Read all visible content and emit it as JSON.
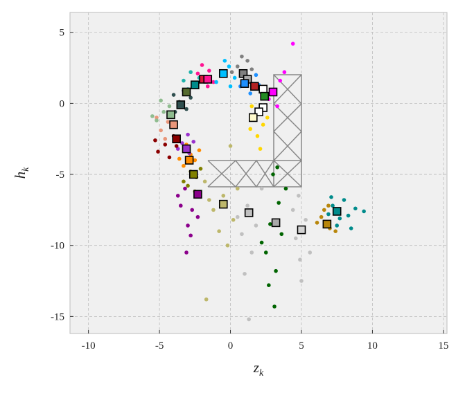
{
  "chart_data": {
    "type": "scatter",
    "xlabel": "z",
    "xlabel_sub": "k",
    "ylabel": "h",
    "ylabel_sub": "k",
    "xlim": [
      -11.3,
      15.25
    ],
    "ylim": [
      -16.2,
      6.4
    ],
    "xticks": [
      -10,
      -5,
      0,
      5,
      10,
      15
    ],
    "yticks": [
      -15,
      -10,
      -5,
      0,
      5
    ],
    "grid": true,
    "series": [
      {
        "color": "#008b8b",
        "x": [
          7.2,
          8.3,
          8.0,
          7.5,
          8.8,
          6.9,
          7.7,
          8.5,
          7.1,
          9.4
        ],
        "values": [
          -7.2,
          -7.9,
          -6.8,
          -8.6,
          -7.4,
          -7.8,
          -8.1,
          -8.8,
          -6.6,
          -7.6
        ]
      },
      {
        "color": "#b8860b",
        "x": [
          6.4,
          7.0,
          6.6,
          7.4,
          6.1,
          6.9
        ],
        "values": [
          -8.0,
          -8.8,
          -7.5,
          -9.0,
          -8.4,
          -7.2
        ]
      },
      {
        "color": "#c0c0c0",
        "x": [
          4.6,
          5.3,
          4.9,
          5.6,
          4.4,
          1.2,
          1.8,
          0.8,
          1.5,
          2.2,
          0.5,
          1.0,
          5.0,
          4.8,
          1.3
        ],
        "values": [
          -9.5,
          -8.2,
          -11.0,
          -10.5,
          -7.5,
          -7.2,
          -8.6,
          -9.2,
          -10.5,
          -6.0,
          -8.0,
          -12.0,
          -12.5,
          -6.5,
          -15.2
        ]
      },
      {
        "color": "#006400",
        "x": [
          3.0,
          3.4,
          2.8,
          3.6,
          2.5,
          3.2,
          3.9,
          2.7,
          3.1,
          3.3,
          2.2
        ],
        "values": [
          -5.0,
          -7.0,
          -8.5,
          -9.2,
          -10.5,
          -11.8,
          -6.0,
          -12.8,
          -14.3,
          -4.5,
          -9.8
        ]
      },
      {
        "color": "#bdb76b",
        "x": [
          -0.5,
          -1.2,
          0.2,
          -0.8,
          0.5,
          -1.5,
          -0.2,
          0.0,
          -1.8,
          -1.7
        ],
        "values": [
          -6.5,
          -7.5,
          -8.2,
          -9.0,
          -6.0,
          -6.8,
          -10.0,
          -3.0,
          -5.5,
          -13.8
        ]
      },
      {
        "color": "#8b008b",
        "x": [
          -3.2,
          -2.7,
          -3.5,
          -2.3,
          -3.0,
          -3.7,
          -2.8,
          -3.1
        ],
        "values": [
          -6.0,
          -7.5,
          -7.2,
          -8.0,
          -8.6,
          -6.5,
          -9.3,
          -10.5
        ]
      },
      {
        "color": "#808000",
        "x": [
          -2.4,
          -3.0,
          -2.1,
          -2.8,
          -3.3,
          -2.5
        ],
        "values": [
          -5.2,
          -5.8,
          -4.6,
          -4.8,
          -5.5,
          -6.2
        ]
      },
      {
        "color": "#ff8c00",
        "x": [
          -2.8,
          -3.3,
          -2.5,
          -3.1,
          -2.2,
          -3.6
        ],
        "values": [
          -3.6,
          -4.4,
          -4.0,
          -2.9,
          -3.3,
          -3.9
        ]
      },
      {
        "color": "#9932cc",
        "x": [
          -3.4,
          -2.9,
          -3.7,
          -3.0,
          -2.6
        ],
        "values": [
          -2.8,
          -3.5,
          -3.2,
          -2.2,
          -2.7
        ]
      },
      {
        "color": "#8b0000",
        "x": [
          -4.6,
          -4.0,
          -5.1,
          -3.8,
          -4.3,
          -5.3
        ],
        "values": [
          -2.9,
          -2.3,
          -3.4,
          -3.0,
          -3.8,
          -2.6
        ]
      },
      {
        "color": "#e9967a",
        "x": [
          -4.4,
          -4.9,
          -3.9,
          -4.6,
          -5.2
        ],
        "values": [
          -1.3,
          -1.9,
          -1.6,
          -2.5,
          -1.0
        ]
      },
      {
        "color": "#8fbc8f",
        "x": [
          -4.7,
          -5.2,
          -4.3,
          -5.5,
          -4.9
        ],
        "values": [
          -0.6,
          -1.2,
          -0.2,
          -0.9,
          0.2
        ]
      },
      {
        "color": "#2f4f4f",
        "x": [
          -3.6,
          -3.1,
          -4.0,
          -3.3,
          -2.8,
          -3.9
        ],
        "values": [
          0.1,
          -0.4,
          0.6,
          0.9,
          0.4,
          -0.6
        ]
      },
      {
        "color": "#20b2aa",
        "x": [
          -2.5,
          -3.0,
          -2.2,
          -2.8,
          -3.3
        ],
        "values": [
          1.4,
          1.0,
          1.8,
          2.2,
          1.6
        ]
      },
      {
        "color": "#ff1493",
        "x": [
          -1.9,
          -1.5,
          -2.3,
          -1.2,
          -2.0,
          -1.6
        ],
        "values": [
          1.8,
          2.3,
          2.1,
          1.5,
          2.7,
          1.2
        ]
      },
      {
        "color": "#00bfff",
        "x": [
          -0.6,
          -0.1,
          -1.0,
          0.3,
          -0.4,
          0.0
        ],
        "values": [
          2.0,
          2.6,
          1.5,
          1.8,
          3.0,
          1.2
        ]
      },
      {
        "color": "#808080",
        "x": [
          0.5,
          1.2,
          0.1,
          0.8,
          1.5
        ],
        "values": [
          2.6,
          3.0,
          2.2,
          3.3,
          2.4
        ]
      },
      {
        "color": "#1e90ff",
        "x": [
          1.1,
          1.8,
          0.7,
          1.4,
          2.0
        ],
        "values": [
          1.5,
          2.0,
          1.2,
          0.7,
          1.3
        ]
      },
      {
        "color": "#ffd700",
        "x": [
          1.8,
          2.3,
          1.5,
          2.6,
          1.9,
          2.1,
          1.4
        ],
        "values": [
          -0.8,
          -1.5,
          -0.2,
          -1.0,
          -2.3,
          -3.2,
          -1.8
        ]
      },
      {
        "color": "#ff00ff",
        "x": [
          3.0,
          3.5,
          2.7,
          3.8,
          3.3,
          4.4
        ],
        "values": [
          0.9,
          1.6,
          0.3,
          2.2,
          -0.2,
          4.2
        ]
      }
    ],
    "centroids": {
      "marker": "square",
      "x": [
        7.5,
        6.8,
        5.0,
        3.2,
        1.3,
        -0.5,
        -2.3,
        -2.6,
        -2.9,
        -3.1,
        -3.8,
        -4.0,
        -4.2,
        -3.5,
        -3.1,
        -2.5,
        -1.9,
        -1.6,
        -0.5,
        0.9,
        1.2,
        1.0,
        1.7,
        2.3,
        2.4,
        3.0,
        2.3,
        2.0,
        1.6
      ],
      "values": [
        -7.6,
        -8.5,
        -8.9,
        -8.4,
        -7.7,
        -7.1,
        -6.4,
        -5.0,
        -4.0,
        -3.2,
        -2.5,
        -1.5,
        -0.8,
        -0.1,
        0.8,
        1.3,
        1.7,
        1.7,
        2.1,
        2.1,
        1.7,
        1.4,
        1.2,
        1.0,
        0.5,
        0.8,
        -0.3,
        -0.6,
        -1.0
      ],
      "colors": [
        "#008b8b",
        "#b8860b",
        "#d3d3d3",
        "#a9a9a9",
        "#c0c0c0",
        "#bdb76b",
        "#8b008b",
        "#808000",
        "#ff8c00",
        "#9932cc",
        "#8b0000",
        "#e9967a",
        "#8fbc8f",
        "#2f4f4f",
        "#556b2f",
        "#008b8b",
        "#dc143c",
        "#ff1493",
        "#00bfff",
        "#808080",
        "#a9a9a9",
        "#1e90ff",
        "#b22222",
        "#ffffff",
        "#228b22",
        "#ff00ff",
        "#ffffff",
        "#ffffff",
        "#fffacd"
      ]
    }
  }
}
